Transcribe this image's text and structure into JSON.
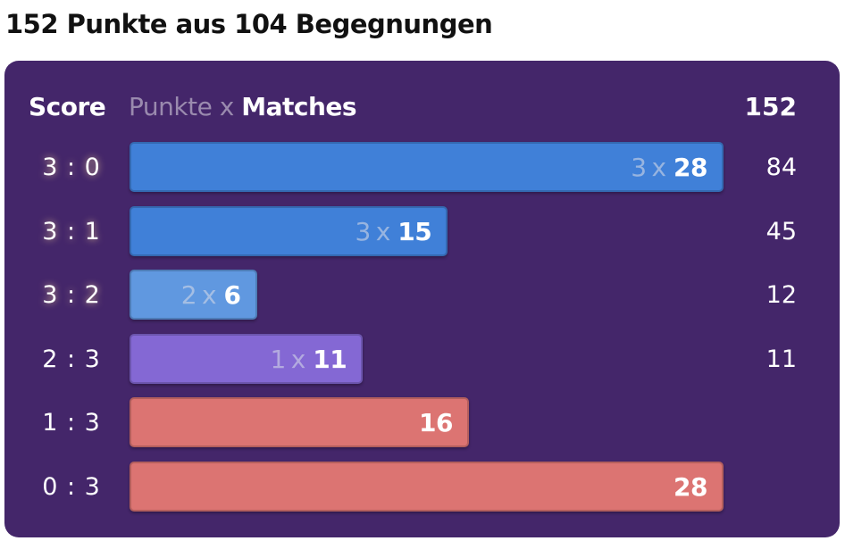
{
  "title": "152 Punkte aus 104 Begegnungen",
  "header": {
    "score": "Score",
    "points": "Punkte",
    "times": "x",
    "matches": "Matches",
    "total": "152"
  },
  "chart_data": {
    "type": "bar",
    "orientation": "horizontal",
    "categories": [
      "3 : 0",
      "3 : 1",
      "3 : 2",
      "2 : 3",
      "1 : 3",
      "0 : 3"
    ],
    "points_per_match": [
      3,
      3,
      2,
      1,
      null,
      null
    ],
    "values": [
      28,
      15,
      6,
      11,
      16,
      28
    ],
    "total_points": [
      84,
      45,
      12,
      11,
      null,
      null
    ],
    "xlim": [
      0,
      28
    ],
    "colors": [
      "#4080d8",
      "#4080d8",
      "#6098e0",
      "#8468d4",
      "#dc7472",
      "#dc7472"
    ],
    "win": [
      true,
      true,
      true,
      false,
      false,
      false
    ]
  }
}
